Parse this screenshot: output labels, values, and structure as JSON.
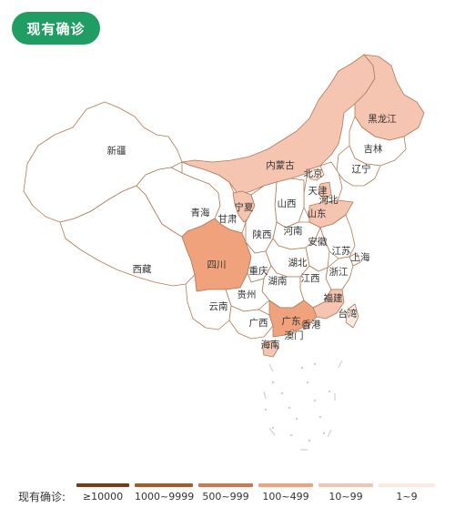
{
  "title": "现有确诊",
  "colors": {
    "title_bg": "#1f9d63",
    "border": "#b07a55",
    "level_10000": "#7b3a12",
    "level_1000": "#a85a2a",
    "level_500": "#d0774c",
    "level_100": "#f0a27c",
    "level_10": "#f6c5b2",
    "level_1": "#faeae3",
    "level_0": "#ffffff"
  },
  "regions": [
    {
      "name": "新疆",
      "level": "level_0"
    },
    {
      "name": "西藏",
      "level": "level_0"
    },
    {
      "name": "青海",
      "level": "level_0"
    },
    {
      "name": "甘肃",
      "level": "level_0"
    },
    {
      "name": "内蒙古",
      "level": "level_10"
    },
    {
      "name": "宁夏",
      "level": "level_10"
    },
    {
      "name": "黑龙江",
      "level": "level_10"
    },
    {
      "name": "吉林",
      "level": "level_0"
    },
    {
      "name": "辽宁",
      "level": "level_0"
    },
    {
      "name": "北京",
      "level": "level_1"
    },
    {
      "name": "天津",
      "level": "level_10"
    },
    {
      "name": "河北",
      "level": "level_0"
    },
    {
      "name": "山西",
      "level": "level_0"
    },
    {
      "name": "山东",
      "level": "level_10"
    },
    {
      "name": "陕西",
      "level": "level_0"
    },
    {
      "name": "河南",
      "level": "level_0"
    },
    {
      "name": "安徽",
      "level": "level_0"
    },
    {
      "name": "江苏",
      "level": "level_0"
    },
    {
      "name": "上海",
      "level": "level_0"
    },
    {
      "name": "四川",
      "level": "level_100"
    },
    {
      "name": "重庆",
      "level": "level_0"
    },
    {
      "name": "湖北",
      "level": "level_0"
    },
    {
      "name": "浙江",
      "level": "level_0"
    },
    {
      "name": "江西",
      "level": "level_0"
    },
    {
      "name": "湖南",
      "level": "level_0"
    },
    {
      "name": "贵州",
      "level": "level_0"
    },
    {
      "name": "云南",
      "level": "level_0"
    },
    {
      "name": "福建",
      "level": "level_10"
    },
    {
      "name": "台湾",
      "level": "level_1"
    },
    {
      "name": "广西",
      "level": "level_0"
    },
    {
      "name": "广东",
      "level": "level_100"
    },
    {
      "name": "香港",
      "level": "level_10"
    },
    {
      "name": "澳门",
      "level": "level_0"
    },
    {
      "name": "海南",
      "level": "level_10"
    }
  ],
  "legend": {
    "title": "现有确诊:",
    "items": [
      {
        "label": "≥10000",
        "level": "level_10000"
      },
      {
        "label": "1000~9999",
        "level": "level_1000"
      },
      {
        "label": "500~999",
        "level": "level_500"
      },
      {
        "label": "100~499",
        "level": "level_100"
      },
      {
        "label": "10~99",
        "level": "level_10"
      },
      {
        "label": "1~9",
        "level": "level_1"
      }
    ]
  }
}
